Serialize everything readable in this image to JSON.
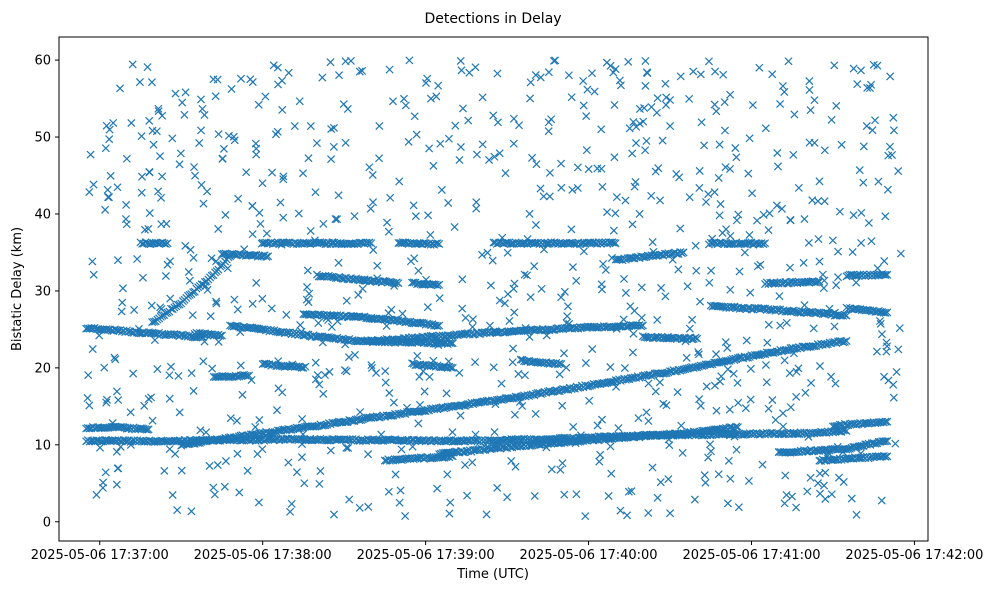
{
  "chart_data": {
    "type": "scatter",
    "title": "Detections in Delay",
    "xlabel": "Time (UTC)",
    "ylabel": "Bistatic Delay (km)",
    "marker": "x",
    "color": "#1f77b4",
    "grid": false,
    "legend": "none",
    "xlim": [
      "2025-05-06 17:36:45",
      "2025-05-06 17:42:05"
    ],
    "ylim": [
      -2.5,
      63
    ],
    "x_ticks": [
      "2025-05-06 17:37:00",
      "2025-05-06 17:38:00",
      "2025-05-06 17:39:00",
      "2025-05-06 17:40:00",
      "2025-05-06 17:41:00",
      "2025-05-06 17:42:00"
    ],
    "y_ticks": [
      "0",
      "10",
      "20",
      "30",
      "40",
      "50",
      "60"
    ],
    "tracks": [
      {
        "x": [
          "17:36:55",
          "17:37:22",
          "17:37:48",
          "17:38:10",
          "17:38:45",
          "17:39:20",
          "17:39:50",
          "17:40:20",
          "17:40:55",
          "17:41:20",
          "17:41:35"
        ],
        "y": [
          10.5,
          10.5,
          10.6,
          10.7,
          10.6,
          10.5,
          10.8,
          11.2,
          11.4,
          11.5,
          11.8
        ]
      },
      {
        "x": [
          "17:37:30",
          "17:38:00",
          "17:38:30",
          "17:39:00",
          "17:39:30",
          "17:40:00",
          "17:40:30",
          "17:40:55",
          "17:41:15",
          "17:41:35"
        ],
        "y": [
          10.0,
          11.5,
          13.0,
          14.5,
          16.0,
          17.7,
          19.5,
          21.2,
          22.5,
          23.5
        ]
      },
      {
        "x": [
          "17:36:55",
          "17:37:15",
          "17:37:38"
        ],
        "y": [
          25.2,
          24.6,
          24.0
        ]
      },
      {
        "x": [
          "17:37:20",
          "17:37:30",
          "17:37:40",
          "17:37:48"
        ],
        "y": [
          26.0,
          28.5,
          31.5,
          34.5
        ]
      },
      {
        "x": [
          "17:37:45",
          "17:38:02"
        ],
        "y": [
          34.8,
          34.5
        ]
      },
      {
        "x": [
          "17:37:48",
          "17:38:10",
          "17:38:35",
          "17:39:10"
        ],
        "y": [
          25.5,
          24.5,
          23.5,
          23.2
        ]
      },
      {
        "x": [
          "17:38:40",
          "17:39:20",
          "17:39:55",
          "17:40:20"
        ],
        "y": [
          23.5,
          24.5,
          25.2,
          25.5
        ]
      },
      {
        "x": [
          "17:38:00",
          "17:38:15"
        ],
        "y": [
          20.5,
          20.0
        ]
      },
      {
        "x": [
          "17:38:15",
          "17:38:40"
        ],
        "y": [
          27.0,
          26.5
        ]
      },
      {
        "x": [
          "17:38:00",
          "17:38:20",
          "17:38:40"
        ],
        "y": [
          36.2,
          36.2,
          36.2
        ]
      },
      {
        "x": [
          "17:38:50",
          "17:39:05"
        ],
        "y": [
          36.2,
          36.1
        ]
      },
      {
        "x": [
          "17:39:25",
          "17:39:45"
        ],
        "y": [
          36.2,
          36.2
        ]
      },
      {
        "x": [
          "17:39:45",
          "17:40:10"
        ],
        "y": [
          36.2,
          36.2
        ]
      },
      {
        "x": [
          "17:38:20",
          "17:38:50"
        ],
        "y": [
          32.0,
          31.0
        ]
      },
      {
        "x": [
          "17:38:55",
          "17:39:05"
        ],
        "y": [
          31.0,
          30.8
        ]
      },
      {
        "x": [
          "17:38:40",
          "17:39:05"
        ],
        "y": [
          26.5,
          25.5
        ]
      },
      {
        "x": [
          "17:38:45",
          "17:39:10"
        ],
        "y": [
          8.0,
          8.5
        ]
      },
      {
        "x": [
          "17:39:05",
          "17:39:30",
          "17:40:00",
          "17:40:35",
          "17:40:55"
        ],
        "y": [
          8.8,
          9.7,
          10.6,
          11.5,
          12.3
        ]
      },
      {
        "x": [
          "17:38:55",
          "17:39:10"
        ],
        "y": [
          20.5,
          20.0
        ]
      },
      {
        "x": [
          "17:39:35",
          "17:39:50"
        ],
        "y": [
          21.0,
          20.5
        ]
      },
      {
        "x": [
          "17:40:10",
          "17:40:35"
        ],
        "y": [
          34.0,
          35.0
        ]
      },
      {
        "x": [
          "17:40:45",
          "17:41:10",
          "17:41:35"
        ],
        "y": [
          28.0,
          27.5,
          26.8
        ]
      },
      {
        "x": [
          "17:41:35",
          "17:41:50"
        ],
        "y": [
          27.8,
          27.2
        ]
      },
      {
        "x": [
          "17:41:35",
          "17:41:50"
        ],
        "y": [
          32.0,
          32.1
        ]
      },
      {
        "x": [
          "17:41:10",
          "17:41:35",
          "17:41:50"
        ],
        "y": [
          9.0,
          9.5,
          10.5
        ]
      },
      {
        "x": [
          "17:41:25",
          "17:41:50"
        ],
        "y": [
          8.0,
          8.5
        ]
      },
      {
        "x": [
          "17:41:30",
          "17:41:50"
        ],
        "y": [
          12.5,
          13.0
        ]
      },
      {
        "x": [
          "17:36:55",
          "17:37:05",
          "17:37:18"
        ],
        "y": [
          12.2,
          12.3,
          12.0
        ]
      },
      {
        "x": [
          "17:37:15",
          "17:37:25"
        ],
        "y": [
          36.2,
          36.2
        ]
      },
      {
        "x": [
          "17:37:35",
          "17:37:45"
        ],
        "y": [
          24.5,
          24.2
        ]
      },
      {
        "x": [
          "17:37:42",
          "17:37:55"
        ],
        "y": [
          18.8,
          19.0
        ]
      },
      {
        "x": [
          "17:40:20",
          "17:40:40"
        ],
        "y": [
          24.0,
          23.8
        ]
      },
      {
        "x": [
          "17:40:45",
          "17:41:05"
        ],
        "y": [
          36.2,
          36.2
        ]
      },
      {
        "x": [
          "17:41:05",
          "17:41:25"
        ],
        "y": [
          31.0,
          31.2
        ]
      }
    ],
    "scatter_range": {
      "x": [
        "2025-05-06 17:36:55",
        "2025-05-06 17:41:55"
      ],
      "y": [
        0.5,
        60
      ]
    }
  }
}
